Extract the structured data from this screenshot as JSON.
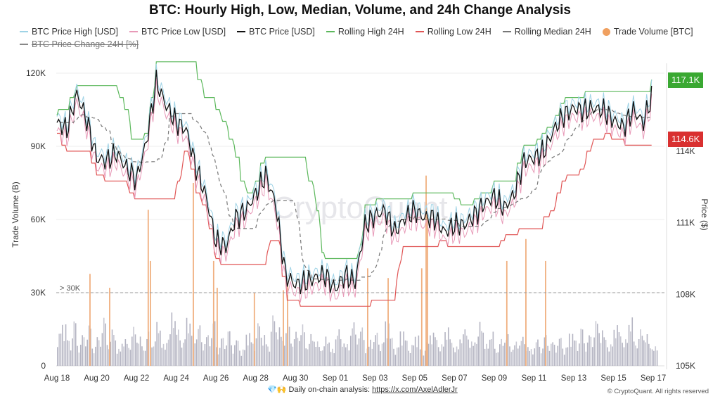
{
  "chart_data": {
    "type": "line",
    "title": "BTC: Hourly High, Low, Median, Volume, and 24h Change Analysis",
    "legend": [
      {
        "name": "BTC Price High [USD]",
        "color": "#9fd3e6",
        "style": "line"
      },
      {
        "name": "BTC Price Low [USD]",
        "color": "#e89ab8",
        "style": "line"
      },
      {
        "name": "BTC Price [USD]",
        "color": "#111111",
        "style": "line"
      },
      {
        "name": "Rolling High 24H",
        "color": "#5cb85c",
        "style": "line"
      },
      {
        "name": "Rolling Low 24H",
        "color": "#e05555",
        "style": "line"
      },
      {
        "name": "Rolling Median 24H",
        "color": "#777777",
        "style": "dashed"
      },
      {
        "name": "Trade Volume [BTC]",
        "color": "#f0a060",
        "style": "dot"
      },
      {
        "name": "BTC Price Change 24H [%]",
        "color": "#888888",
        "style": "line",
        "hidden": true
      }
    ],
    "legend_placement": "top",
    "x_ticks": [
      "Aug 18",
      "Aug 20",
      "Aug 22",
      "Aug 24",
      "Aug 26",
      "Aug 28",
      "Aug 30",
      "Sep 01",
      "Sep 03",
      "Sep 05",
      "Sep 07",
      "Sep 09",
      "Sep 11",
      "Sep 13",
      "Sep 15",
      "Sep 17"
    ],
    "x_start": "Aug 18",
    "x_step_days": 0.5,
    "y_left": {
      "label": "Trade Volume (B)",
      "ticks": [
        "0",
        "30K",
        "60K",
        "90K",
        "120K"
      ],
      "range": [
        0,
        123000
      ]
    },
    "y_right": {
      "label": "Price ($)",
      "ticks": [
        "105K",
        "108K",
        "111K",
        "114K"
      ],
      "range": [
        105,
        117.5
      ]
    },
    "threshold": {
      "value": 30000,
      "label": "> 30K"
    },
    "last_high_label": {
      "text": "117.1K",
      "color": "#3aa832"
    },
    "last_low_label": {
      "text": "114.6K",
      "color": "#d93030"
    },
    "price_k": [
      115.2,
      114.9,
      116.4,
      115.3,
      113.7,
      113.6,
      113.9,
      113.3,
      112.8,
      114.4,
      116.9,
      115.9,
      115.2,
      114.9,
      113.3,
      112.1,
      110.2,
      110.0,
      111.2,
      111.5,
      112.2,
      113.0,
      111.8,
      108.8,
      108.4,
      108.5,
      108.7,
      108.8,
      108.2,
      108.8,
      108.5,
      110.9,
      111.3,
      111.5,
      110.6,
      111.2,
      111.5,
      111.2,
      111.2,
      110.6,
      110.9,
      110.9,
      111.3,
      111.8,
      112.1,
      111.6,
      112.2,
      113.6,
      113.7,
      114.0,
      114.9,
      115.5,
      115.8,
      115.7,
      115.8,
      115.7,
      115.3,
      115.0,
      115.7,
      115.2,
      116.5
    ],
    "volume_6h": [
      14,
      18,
      11,
      19,
      9,
      13,
      17,
      8,
      12,
      20,
      10,
      15,
      7,
      11,
      9,
      16,
      12,
      8,
      14,
      10,
      18,
      9,
      13,
      22,
      15,
      11,
      20,
      14,
      17,
      10,
      13,
      19,
      8,
      12,
      15,
      9,
      11,
      7,
      14,
      10,
      18,
      13,
      9,
      21,
      16,
      12,
      19,
      11,
      14,
      17,
      9,
      13,
      10,
      8,
      12,
      7,
      15,
      11,
      9,
      18,
      13,
      16,
      8,
      11,
      14,
      10,
      19,
      12,
      8,
      15,
      11,
      9,
      13,
      7,
      10,
      14,
      12,
      9,
      16,
      11,
      8,
      13,
      15,
      10,
      12,
      18,
      9,
      14,
      7,
      11,
      13,
      8,
      10,
      12,
      9,
      7,
      11,
      8,
      13,
      10,
      9,
      12,
      8,
      14,
      11,
      16,
      10,
      13,
      19,
      15,
      12,
      9,
      17,
      14,
      11,
      20,
      10,
      15,
      13,
      9,
      8
    ],
    "volume_spikes": [
      {
        "day": 1.63,
        "value": 37.7
      },
      {
        "day": 2.62,
        "value": 32
      },
      {
        "day": 4.56,
        "value": 64
      },
      {
        "day": 4.67,
        "value": 43
      },
      {
        "day": 6.83,
        "value": 75
      },
      {
        "day": 7.85,
        "value": 43
      },
      {
        "day": 8.03,
        "value": 32
      },
      {
        "day": 9.9,
        "value": 30
      },
      {
        "day": 11.36,
        "value": 31
      },
      {
        "day": 11.57,
        "value": 34
      },
      {
        "day": 15.6,
        "value": 40
      },
      {
        "day": 16.63,
        "value": 36
      },
      {
        "day": 18.32,
        "value": 40
      },
      {
        "day": 18.54,
        "value": 78
      },
      {
        "day": 18.61,
        "value": 61
      },
      {
        "day": 22.6,
        "value": 43
      },
      {
        "day": 23.56,
        "value": 52
      },
      {
        "day": 24.55,
        "value": 43
      }
    ]
  },
  "watermark": "CryptoQuant",
  "footer": {
    "left": "💎🙌 Daily on-chain analysis: ",
    "link": "https://x.com/AxelAdlerJr",
    "right": "© CryptoQuant. All rights reserved"
  }
}
